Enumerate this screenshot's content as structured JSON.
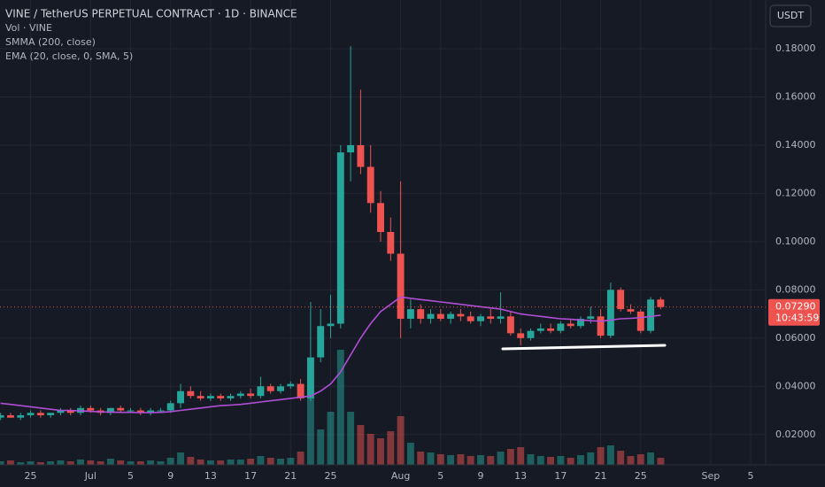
{
  "chart_data": {
    "type": "candlestick",
    "title": "VINE / TetherUS PERPETUAL CONTRACT · 1D · BINANCE",
    "indicators": [
      "Vol · VINE",
      "SMMA (200, close)",
      "EMA (20, close, 0, SMA, 5)"
    ],
    "currency": "USDT",
    "categories": [
      null,
      null,
      null,
      "25",
      null,
      null,
      null,
      null,
      null,
      "Jul",
      null,
      null,
      null,
      "5",
      null,
      null,
      null,
      "9",
      null,
      null,
      null,
      "13",
      null,
      null,
      null,
      "17",
      null,
      null,
      null,
      "21",
      null,
      null,
      null,
      "25",
      null,
      null,
      null,
      null,
      null,
      null,
      "Aug",
      null,
      null,
      null,
      "5",
      null,
      null,
      null,
      "9",
      null,
      null,
      null,
      "13",
      null,
      null,
      null,
      "17",
      null,
      null,
      null,
      "21",
      null,
      null,
      null,
      "25",
      null,
      null,
      null,
      null,
      null,
      null,
      "Sep",
      null,
      null,
      null,
      "5",
      null
    ],
    "open": [
      0.027,
      0.028,
      0.027,
      0.028,
      0.029,
      0.028,
      0.029,
      0.03,
      0.029,
      0.031,
      0.03,
      0.029,
      0.031,
      0.03,
      0.03,
      0.029,
      0.03,
      0.03,
      0.033,
      0.038,
      0.036,
      0.035,
      0.036,
      0.035,
      0.036,
      0.037,
      0.036,
      0.04,
      0.038,
      0.04,
      0.041,
      0.035,
      0.052,
      0.065,
      0.066,
      0.137,
      0.14,
      0.131,
      0.116,
      0.104,
      0.095,
      0.068,
      0.072,
      0.068,
      0.07,
      0.068,
      0.07,
      0.069,
      0.067,
      0.069,
      0.068,
      0.069,
      0.062,
      0.06,
      0.063,
      0.064,
      0.063,
      0.066,
      0.065,
      0.068,
      0.069,
      0.061,
      0.08,
      0.072,
      0.071,
      0.063,
      0.076,
      null,
      null,
      null,
      null,
      null,
      null,
      null,
      null,
      null,
      null
    ],
    "high": [
      0.029,
      0.029,
      0.029,
      0.03,
      0.03,
      0.029,
      0.031,
      0.031,
      0.032,
      0.032,
      0.031,
      0.031,
      0.032,
      0.031,
      0.031,
      0.031,
      0.031,
      0.034,
      0.041,
      0.04,
      0.038,
      0.037,
      0.037,
      0.037,
      0.038,
      0.039,
      0.044,
      0.041,
      0.041,
      0.042,
      0.043,
      0.075,
      0.072,
      0.078,
      0.14,
      0.181,
      0.163,
      0.14,
      0.121,
      0.11,
      0.125,
      0.076,
      0.074,
      0.072,
      0.072,
      0.071,
      0.072,
      0.071,
      0.07,
      0.072,
      0.079,
      0.071,
      0.064,
      0.064,
      0.066,
      0.066,
      0.067,
      0.068,
      0.069,
      0.073,
      0.072,
      0.083,
      0.081,
      0.074,
      0.072,
      0.077,
      0.077,
      null,
      null,
      null,
      null,
      null,
      null,
      null,
      null,
      null,
      null
    ],
    "low": [
      0.026,
      0.027,
      0.026,
      0.027,
      0.027,
      0.027,
      0.028,
      0.028,
      0.028,
      0.029,
      0.028,
      0.028,
      0.029,
      0.029,
      0.028,
      0.028,
      0.029,
      0.029,
      0.031,
      0.035,
      0.034,
      0.034,
      0.034,
      0.034,
      0.035,
      0.035,
      0.035,
      0.037,
      0.037,
      0.039,
      0.034,
      0.034,
      0.05,
      0.06,
      0.064,
      0.125,
      0.128,
      0.112,
      0.1,
      0.092,
      0.06,
      0.064,
      0.066,
      0.066,
      0.067,
      0.066,
      0.067,
      0.066,
      0.065,
      0.066,
      0.066,
      0.061,
      0.057,
      0.059,
      0.062,
      0.062,
      0.062,
      0.064,
      0.064,
      0.066,
      0.06,
      0.06,
      0.071,
      0.07,
      0.062,
      0.062,
      0.072,
      null,
      null,
      null,
      null,
      null,
      null,
      null,
      null,
      null,
      null
    ],
    "close": [
      0.028,
      0.027,
      0.028,
      0.029,
      0.028,
      0.029,
      0.03,
      0.029,
      0.031,
      0.03,
      0.029,
      0.031,
      0.03,
      0.03,
      0.029,
      0.03,
      0.03,
      0.033,
      0.038,
      0.036,
      0.035,
      0.036,
      0.035,
      0.036,
      0.037,
      0.036,
      0.04,
      0.038,
      0.04,
      0.041,
      0.035,
      0.052,
      0.065,
      0.066,
      0.137,
      0.14,
      0.131,
      0.116,
      0.104,
      0.095,
      0.068,
      0.072,
      0.068,
      0.07,
      0.068,
      0.07,
      0.069,
      0.067,
      0.069,
      0.068,
      0.069,
      0.062,
      0.06,
      0.063,
      0.064,
      0.063,
      0.066,
      0.065,
      0.068,
      0.069,
      0.061,
      0.08,
      0.072,
      0.071,
      0.063,
      0.076,
      0.0729,
      null,
      null,
      null,
      null,
      null,
      null,
      null,
      null,
      null,
      null
    ],
    "volume": [
      4,
      5,
      3,
      4,
      3,
      4,
      5,
      4,
      6,
      5,
      4,
      7,
      5,
      4,
      4,
      5,
      4,
      8,
      14,
      9,
      6,
      5,
      5,
      6,
      6,
      7,
      10,
      8,
      7,
      8,
      15,
      77,
      40,
      60,
      130,
      60,
      45,
      35,
      30,
      38,
      55,
      25,
      15,
      14,
      12,
      11,
      12,
      10,
      11,
      10,
      15,
      18,
      20,
      12,
      10,
      9,
      10,
      8,
      11,
      14,
      20,
      22,
      16,
      10,
      12,
      14,
      8,
      null,
      null,
      null,
      null,
      null,
      null,
      null,
      null,
      null,
      null
    ],
    "series": [
      {
        "name": "EMA (20, close, 0, SMA, 5)",
        "color": "#b04ed6",
        "values": [
          0.033,
          0.0325,
          0.032,
          0.0315,
          0.031,
          0.0305,
          0.03,
          0.03,
          0.0298,
          0.0296,
          0.0294,
          0.0293,
          0.0292,
          0.0292,
          0.0291,
          0.0291,
          0.0292,
          0.0295,
          0.03,
          0.0305,
          0.031,
          0.0315,
          0.032,
          0.0322,
          0.0325,
          0.033,
          0.0335,
          0.034,
          0.0345,
          0.035,
          0.0355,
          0.036,
          0.038,
          0.041,
          0.046,
          0.053,
          0.06,
          0.066,
          0.071,
          0.074,
          0.077,
          0.0765,
          0.076,
          0.0755,
          0.075,
          0.0745,
          0.074,
          0.0735,
          0.073,
          0.0725,
          0.072,
          0.071,
          0.07,
          0.0695,
          0.069,
          0.0685,
          0.068,
          0.0678,
          0.0675,
          0.0672,
          0.067,
          0.0675,
          0.068,
          0.0682,
          0.0685,
          0.069,
          0.0695,
          null,
          null,
          null,
          null,
          null,
          null,
          null,
          null,
          null,
          null
        ]
      }
    ],
    "colors": {
      "up": "#26a69a",
      "down": "#ef5350"
    },
    "ylim": [
      0.00743,
      0.2002
    ],
    "yticks": [
      {
        "value": 0.02,
        "label": "0.02000"
      },
      {
        "value": 0.04,
        "label": "0.04000"
      },
      {
        "value": 0.06,
        "label": "0.06000"
      },
      {
        "value": 0.08,
        "label": "0.08000"
      },
      {
        "value": 0.1,
        "label": "0.10000"
      },
      {
        "value": 0.12,
        "label": "0.12000"
      },
      {
        "value": 0.14,
        "label": "0.14000"
      },
      {
        "value": 0.16,
        "label": "0.16000"
      },
      {
        "value": 0.18,
        "label": "0.18000"
      }
    ],
    "grid": true,
    "last_price": {
      "value": 0.0729,
      "label": "0.07290"
    },
    "countdown": "10:43:59"
  }
}
